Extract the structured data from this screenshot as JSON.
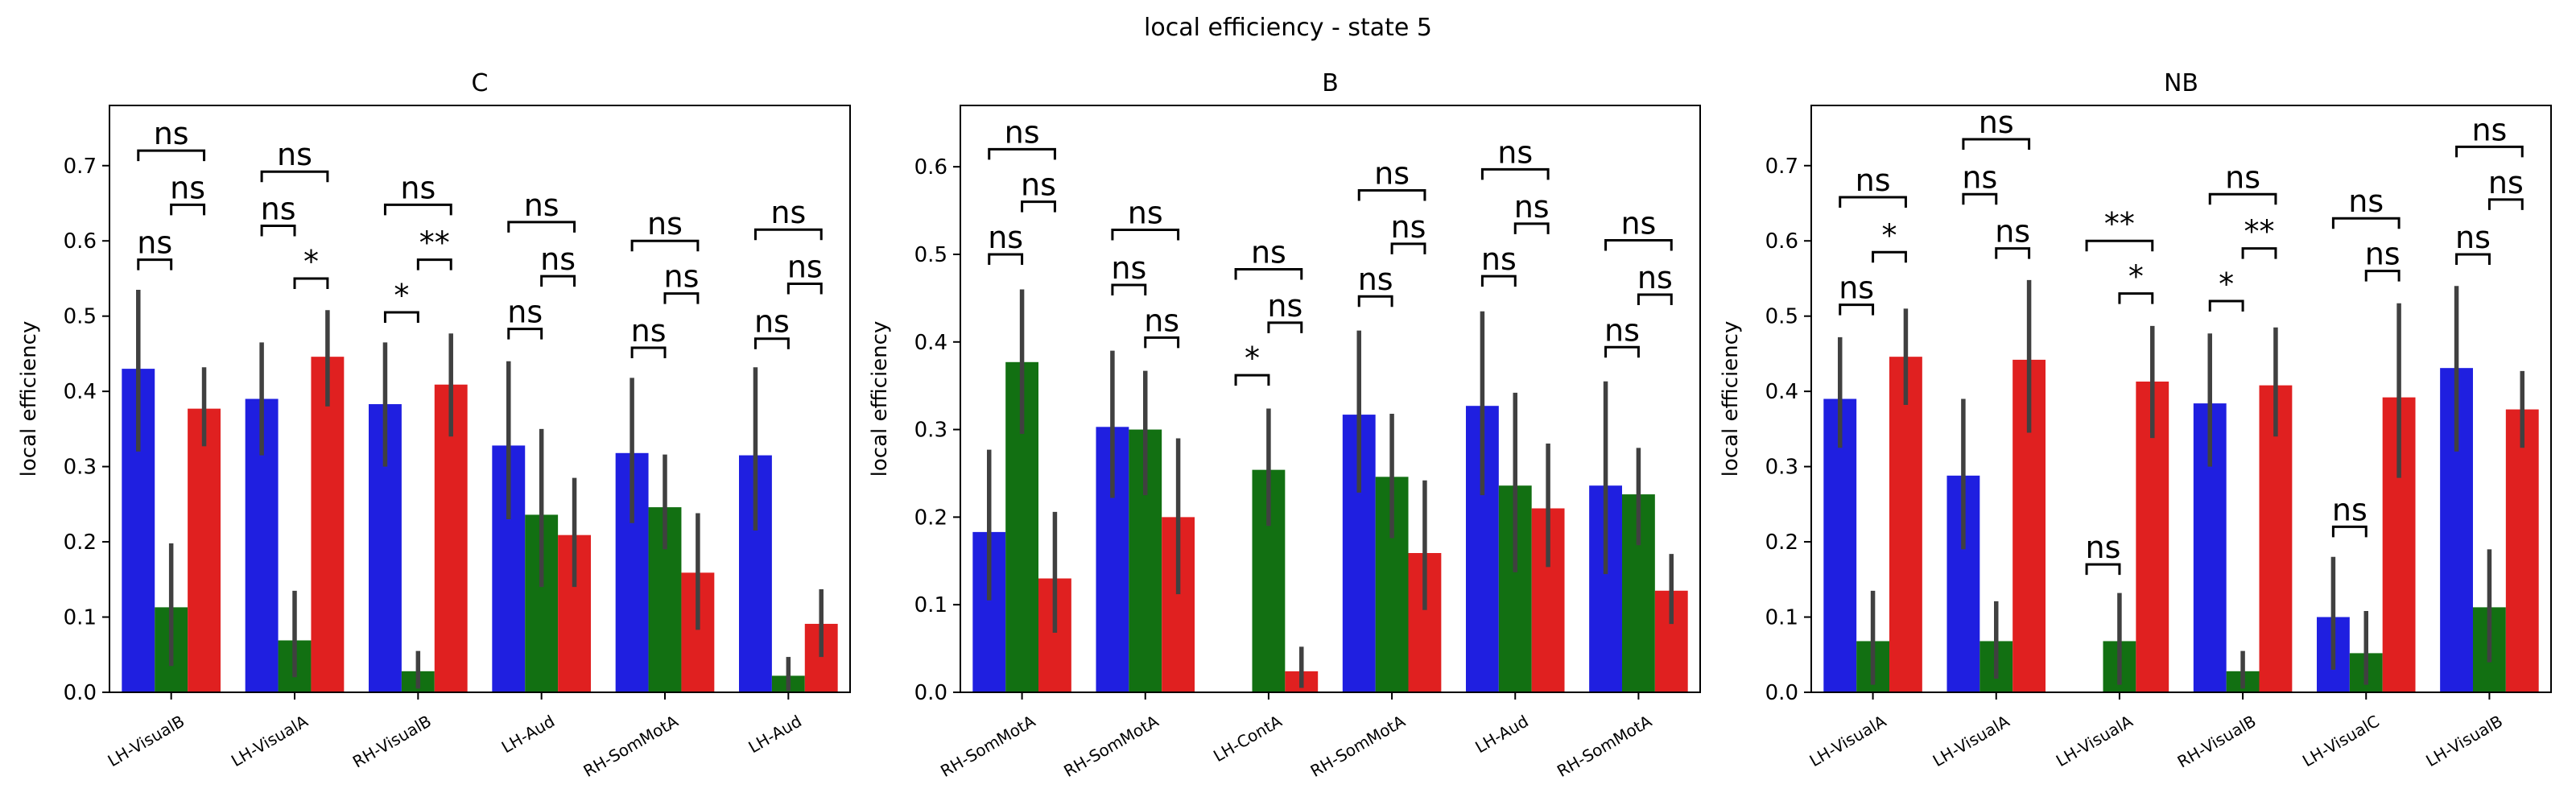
{
  "title": "local efficiency - state 5",
  "colors": {
    "series1": "#1f1fe0",
    "series2": "#127012",
    "series3": "#e02020",
    "errorbar": "#404040"
  },
  "chart_data": [
    {
      "type": "bar",
      "title": "C",
      "ylabel": "local efficiency",
      "xlabel": "",
      "ylim": [
        0,
        0.78
      ],
      "yticks": [
        0.0,
        0.1,
        0.2,
        0.3,
        0.4,
        0.5,
        0.6,
        0.7
      ],
      "categories": [
        "LH-VisualB",
        "LH-VisualA",
        "RH-VisualB",
        "LH-Aud",
        "RH-SomMotA",
        "LH-Aud"
      ],
      "series": [
        {
          "values": [
            0.43,
            0.39,
            0.383,
            0.328,
            0.318,
            0.315
          ],
          "err_low": [
            0.32,
            0.315,
            0.3,
            0.23,
            0.225,
            0.215
          ],
          "err_high": [
            0.535,
            0.465,
            0.465,
            0.44,
            0.418,
            0.432
          ]
        },
        {
          "values": [
            0.113,
            0.069,
            0.028,
            0.236,
            0.246,
            0.022
          ],
          "err_low": [
            0.035,
            0.02,
            0.005,
            0.14,
            0.19,
            0.002
          ],
          "err_high": [
            0.198,
            0.135,
            0.055,
            0.35,
            0.316,
            0.047
          ]
        },
        {
          "values": [
            0.377,
            0.446,
            0.409,
            0.209,
            0.159,
            0.091
          ],
          "err_low": [
            0.327,
            0.38,
            0.34,
            0.14,
            0.083,
            0.047
          ],
          "err_high": [
            0.432,
            0.508,
            0.477,
            0.285,
            0.238,
            0.137
          ]
        }
      ],
      "annotations": [
        {
          "group": 0,
          "from": 0,
          "to": 1,
          "y": 0.575,
          "label": "ns"
        },
        {
          "group": 0,
          "from": 1,
          "to": 2,
          "y": 0.648,
          "label": "ns"
        },
        {
          "group": 0,
          "from": 0,
          "to": 2,
          "y": 0.72,
          "label": "ns"
        },
        {
          "group": 1,
          "from": 0,
          "to": 1,
          "y": 0.62,
          "label": "ns"
        },
        {
          "group": 1,
          "from": 1,
          "to": 2,
          "y": 0.55,
          "label": "*"
        },
        {
          "group": 1,
          "from": 0,
          "to": 2,
          "y": 0.692,
          "label": "ns"
        },
        {
          "group": 2,
          "from": 0,
          "to": 1,
          "y": 0.505,
          "label": "*"
        },
        {
          "group": 2,
          "from": 1,
          "to": 2,
          "y": 0.575,
          "label": "**"
        },
        {
          "group": 2,
          "from": 0,
          "to": 2,
          "y": 0.648,
          "label": "ns"
        },
        {
          "group": 3,
          "from": 0,
          "to": 1,
          "y": 0.483,
          "label": "ns"
        },
        {
          "group": 3,
          "from": 1,
          "to": 2,
          "y": 0.553,
          "label": "ns"
        },
        {
          "group": 3,
          "from": 0,
          "to": 2,
          "y": 0.625,
          "label": "ns"
        },
        {
          "group": 4,
          "from": 0,
          "to": 1,
          "y": 0.458,
          "label": "ns"
        },
        {
          "group": 4,
          "from": 1,
          "to": 2,
          "y": 0.53,
          "label": "ns"
        },
        {
          "group": 4,
          "from": 0,
          "to": 2,
          "y": 0.6,
          "label": "ns"
        },
        {
          "group": 5,
          "from": 0,
          "to": 1,
          "y": 0.47,
          "label": "ns"
        },
        {
          "group": 5,
          "from": 1,
          "to": 2,
          "y": 0.543,
          "label": "ns"
        },
        {
          "group": 5,
          "from": 0,
          "to": 2,
          "y": 0.615,
          "label": "ns"
        }
      ]
    },
    {
      "type": "bar",
      "title": "B",
      "ylabel": "local efficiency",
      "xlabel": "",
      "ylim": [
        0,
        0.67
      ],
      "yticks": [
        0.0,
        0.1,
        0.2,
        0.3,
        0.4,
        0.5,
        0.6
      ],
      "categories": [
        "RH-SomMotA",
        "RH-SomMotA",
        "LH-ContA",
        "RH-SomMotA",
        "LH-Aud",
        "RH-SomMotA"
      ],
      "series": [
        {
          "values": [
            0.183,
            0.303,
            null,
            0.317,
            0.327,
            0.236
          ],
          "err_low": [
            0.105,
            0.222,
            null,
            0.228,
            0.225,
            0.135
          ],
          "err_high": [
            0.277,
            0.39,
            null,
            0.413,
            0.435,
            0.355
          ]
        },
        {
          "values": [
            0.377,
            0.3,
            0.254,
            0.246,
            0.236,
            0.226
          ],
          "err_low": [
            0.295,
            0.225,
            0.19,
            0.176,
            0.137,
            0.168
          ],
          "err_high": [
            0.46,
            0.367,
            0.324,
            0.318,
            0.342,
            0.279
          ]
        },
        {
          "values": [
            0.13,
            0.2,
            0.024,
            0.159,
            0.21,
            0.116
          ],
          "err_low": [
            0.068,
            0.112,
            0.005,
            0.094,
            0.143,
            0.078
          ],
          "err_high": [
            0.206,
            0.29,
            0.052,
            0.242,
            0.284,
            0.158
          ]
        }
      ],
      "annotations": [
        {
          "group": 0,
          "from": 0,
          "to": 1,
          "y": 0.5,
          "label": "ns"
        },
        {
          "group": 0,
          "from": 1,
          "to": 2,
          "y": 0.56,
          "label": "ns"
        },
        {
          "group": 0,
          "from": 0,
          "to": 2,
          "y": 0.62,
          "label": "ns"
        },
        {
          "group": 1,
          "from": 0,
          "to": 1,
          "y": 0.465,
          "label": "ns"
        },
        {
          "group": 1,
          "from": 1,
          "to": 2,
          "y": 0.405,
          "label": "ns"
        },
        {
          "group": 1,
          "from": 0,
          "to": 2,
          "y": 0.528,
          "label": "ns"
        },
        {
          "group": 2,
          "from": 0,
          "to": 1,
          "y": 0.362,
          "label": "*"
        },
        {
          "group": 2,
          "from": 1,
          "to": 2,
          "y": 0.422,
          "label": "ns"
        },
        {
          "group": 2,
          "from": 0,
          "to": 2,
          "y": 0.483,
          "label": "ns"
        },
        {
          "group": 3,
          "from": 0,
          "to": 1,
          "y": 0.452,
          "label": "ns"
        },
        {
          "group": 3,
          "from": 1,
          "to": 2,
          "y": 0.512,
          "label": "ns"
        },
        {
          "group": 3,
          "from": 0,
          "to": 2,
          "y": 0.573,
          "label": "ns"
        },
        {
          "group": 4,
          "from": 0,
          "to": 1,
          "y": 0.475,
          "label": "ns"
        },
        {
          "group": 4,
          "from": 1,
          "to": 2,
          "y": 0.535,
          "label": "ns"
        },
        {
          "group": 4,
          "from": 0,
          "to": 2,
          "y": 0.597,
          "label": "ns"
        },
        {
          "group": 5,
          "from": 0,
          "to": 1,
          "y": 0.394,
          "label": "ns"
        },
        {
          "group": 5,
          "from": 1,
          "to": 2,
          "y": 0.454,
          "label": "ns"
        },
        {
          "group": 5,
          "from": 0,
          "to": 2,
          "y": 0.516,
          "label": "ns"
        }
      ]
    },
    {
      "type": "bar",
      "title": "NB",
      "ylabel": "local efficiency",
      "xlabel": "",
      "ylim": [
        0,
        0.78
      ],
      "yticks": [
        0.0,
        0.1,
        0.2,
        0.3,
        0.4,
        0.5,
        0.6,
        0.7
      ],
      "categories": [
        "LH-VisualA",
        "LH-VisualA",
        "LH-VisualA",
        "RH-VisualB",
        "LH-VisualC",
        "LH-VisualB"
      ],
      "series": [
        {
          "values": [
            0.39,
            0.288,
            null,
            0.384,
            0.1,
            0.431
          ],
          "err_low": [
            0.325,
            0.19,
            null,
            0.3,
            0.03,
            0.32
          ],
          "err_high": [
            0.472,
            0.39,
            null,
            0.477,
            0.18,
            0.54
          ]
        },
        {
          "values": [
            0.068,
            0.068,
            0.068,
            0.028,
            0.052,
            0.113
          ],
          "err_low": [
            0.01,
            0.018,
            0.01,
            0.005,
            0.01,
            0.04
          ],
          "err_high": [
            0.135,
            0.121,
            0.132,
            0.055,
            0.108,
            0.19
          ]
        },
        {
          "values": [
            0.446,
            0.442,
            0.413,
            0.408,
            0.392,
            0.376
          ],
          "err_low": [
            0.382,
            0.345,
            0.338,
            0.34,
            0.285,
            0.325
          ],
          "err_high": [
            0.51,
            0.548,
            0.487,
            0.485,
            0.517,
            0.427
          ]
        }
      ],
      "annotations": [
        {
          "group": 0,
          "from": 0,
          "to": 1,
          "y": 0.515,
          "label": "ns"
        },
        {
          "group": 0,
          "from": 1,
          "to": 2,
          "y": 0.585,
          "label": "*"
        },
        {
          "group": 0,
          "from": 0,
          "to": 2,
          "y": 0.658,
          "label": "ns"
        },
        {
          "group": 1,
          "from": 0,
          "to": 1,
          "y": 0.662,
          "label": "ns"
        },
        {
          "group": 1,
          "from": 1,
          "to": 2,
          "y": 0.59,
          "label": "ns"
        },
        {
          "group": 1,
          "from": 0,
          "to": 2,
          "y": 0.735,
          "label": "ns"
        },
        {
          "group": 2,
          "from": 1,
          "to": 2,
          "y": 0.53,
          "label": "*"
        },
        {
          "group": 2,
          "from": 0,
          "to": 2,
          "y": 0.6,
          "label": "**"
        },
        {
          "group": 2,
          "from": 0,
          "to": 1,
          "y": 0.17,
          "label": "ns"
        },
        {
          "group": 3,
          "from": 0,
          "to": 1,
          "y": 0.52,
          "label": "*"
        },
        {
          "group": 3,
          "from": 1,
          "to": 2,
          "y": 0.59,
          "label": "**"
        },
        {
          "group": 3,
          "from": 0,
          "to": 2,
          "y": 0.662,
          "label": "ns"
        },
        {
          "group": 4,
          "from": 0,
          "to": 1,
          "y": 0.22,
          "label": "ns"
        },
        {
          "group": 4,
          "from": 1,
          "to": 2,
          "y": 0.56,
          "label": "ns"
        },
        {
          "group": 4,
          "from": 0,
          "to": 2,
          "y": 0.63,
          "label": "ns"
        },
        {
          "group": 5,
          "from": 0,
          "to": 1,
          "y": 0.582,
          "label": "ns"
        },
        {
          "group": 5,
          "from": 1,
          "to": 2,
          "y": 0.655,
          "label": "ns"
        },
        {
          "group": 5,
          "from": 0,
          "to": 2,
          "y": 0.725,
          "label": "ns"
        }
      ]
    }
  ]
}
